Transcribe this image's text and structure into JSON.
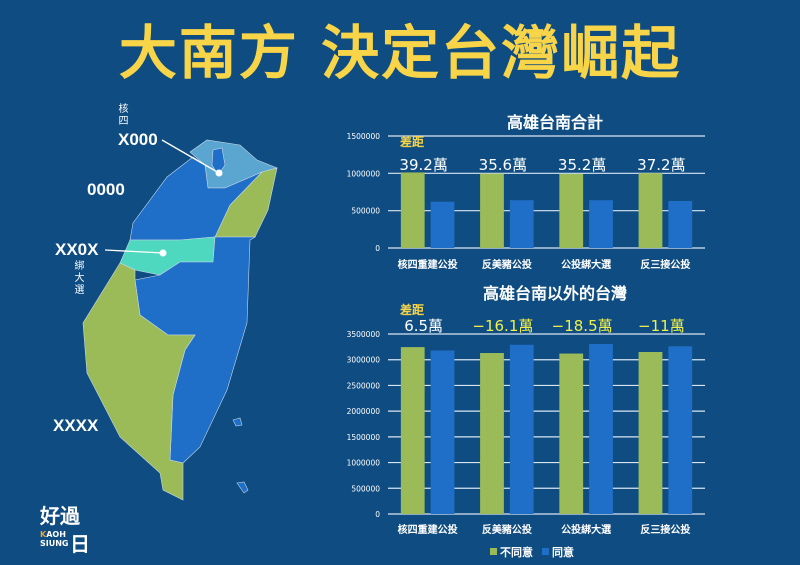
{
  "title": "大南方 決定台灣崛起",
  "colors": {
    "background": "#0f4c81",
    "title": "#f7d448",
    "disagree": "#9bbb59",
    "agree": "#1f6fc8",
    "highlight": "#f0f04a",
    "taipei_region": "#5aa6d0",
    "taichung_region": "#4fd8c0"
  },
  "map": {
    "labels": {
      "north_small": "核四",
      "north": "X000",
      "northwest": "0000",
      "central": "XX0X",
      "central_small": "綁大選",
      "south": "XXXX"
    }
  },
  "logo": {
    "main": "好過",
    "sub_k": "K",
    "sub_rest": "AOH",
    "sub_line2": "SIUNG",
    "box": "日"
  },
  "chart_data": [
    {
      "type": "bar",
      "title": "高雄台南合計",
      "categories": [
        "核四重建公投",
        "反美豬公投",
        "公投綁大選",
        "反三接公投"
      ],
      "series": [
        {
          "name": "不同意",
          "values": [
            1012000,
            996000,
            992000,
            1002000
          ]
        },
        {
          "name": "同意",
          "values": [
            620000,
            640000,
            640000,
            630000
          ]
        }
      ],
      "ylim": [
        0,
        1500000
      ],
      "yticks": [
        "0",
        "500000",
        "1000000",
        "1500000"
      ],
      "grid": true,
      "annotation_label": "差距",
      "annotations": [
        "39.2萬",
        "35.6萬",
        "35.2萬",
        "37.2萬"
      ]
    },
    {
      "type": "bar",
      "title": "高雄台南以外的台灣",
      "categories": [
        "核四重建公投",
        "反美豬公投",
        "公投綁大選",
        "反三接公投"
      ],
      "series": [
        {
          "name": "不同意",
          "values": [
            3245000,
            3130000,
            3120000,
            3150000
          ]
        },
        {
          "name": "同意",
          "values": [
            3180000,
            3291000,
            3305000,
            3260000
          ]
        }
      ],
      "ylim": [
        0,
        3500000
      ],
      "yticks": [
        "0",
        "500000",
        "1000000",
        "1500000",
        "2000000",
        "2500000",
        "3000000",
        "3500000"
      ],
      "grid": true,
      "annotation_label": "差距",
      "annotations": [
        "6.5萬",
        "−16.1萬",
        "−18.5萬",
        "−11萬"
      ],
      "legend": {
        "position": "bottom",
        "entries": [
          "不同意",
          "同意"
        ]
      }
    }
  ]
}
